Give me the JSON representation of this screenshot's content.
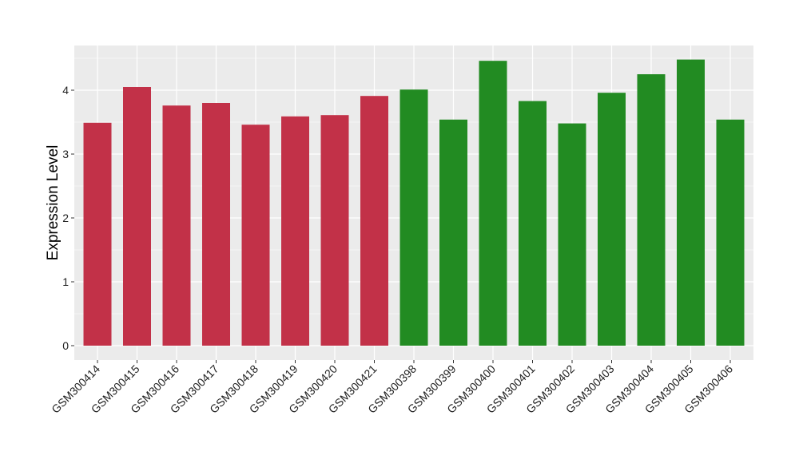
{
  "chart_data": {
    "type": "bar",
    "title": "",
    "xlabel": "",
    "ylabel": "Expression Level",
    "ylim": [
      -0.22,
      4.7
    ],
    "yticks": [
      0,
      1,
      2,
      3,
      4
    ],
    "grid": true,
    "categories": [
      "GSM300414",
      "GSM300415",
      "GSM300416",
      "GSM300417",
      "GSM300418",
      "GSM300419",
      "GSM300420",
      "GSM300421",
      "GSM300398",
      "GSM300399",
      "GSM300400",
      "GSM300401",
      "GSM300402",
      "GSM300403",
      "GSM300404",
      "GSM300405",
      "GSM300406"
    ],
    "values": [
      3.49,
      4.05,
      3.76,
      3.8,
      3.46,
      3.59,
      3.61,
      3.91,
      4.01,
      3.54,
      4.46,
      3.83,
      3.48,
      3.96,
      4.25,
      4.48,
      3.54
    ],
    "bar_colors": [
      "#c23148",
      "#c23148",
      "#c23148",
      "#c23148",
      "#c23148",
      "#c23148",
      "#c23148",
      "#c23148",
      "#228b22",
      "#228b22",
      "#228b22",
      "#228b22",
      "#228b22",
      "#228b22",
      "#228b22",
      "#228b22",
      "#228b22"
    ],
    "panel_background": "#ebebeb",
    "gridline_color": "#ffffff"
  }
}
